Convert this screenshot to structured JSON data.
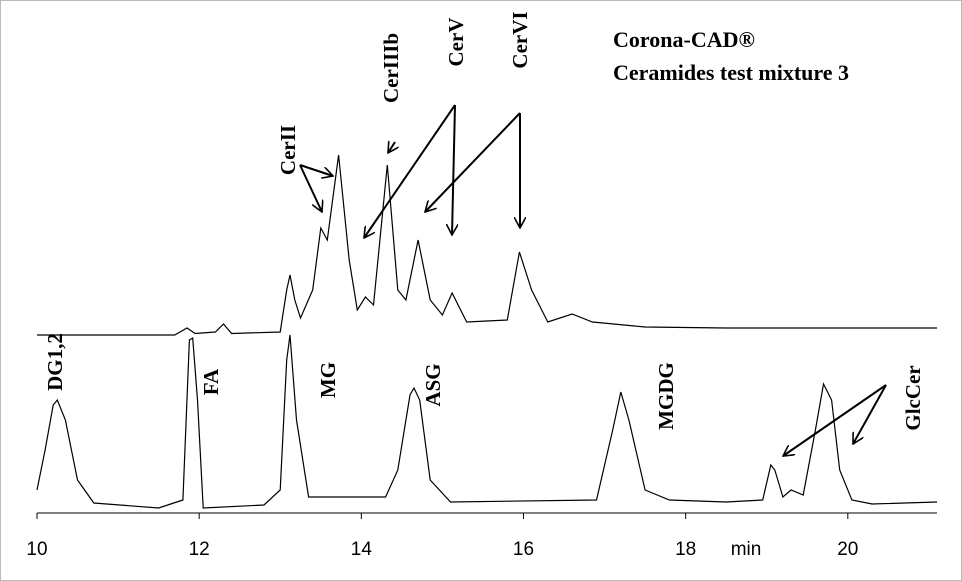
{
  "chart_data": {
    "type": "line",
    "title_lines": [
      "Corona-CAD®",
      "Ceramides test mixture 3"
    ],
    "x_unit_label": "min",
    "xlim": [
      10,
      21.1
    ],
    "xticks": [
      10,
      12,
      14,
      16,
      18,
      20
    ],
    "ylim": [
      0,
      100
    ],
    "annotations": [
      "DG1,2",
      "FA",
      "MG",
      "ASG",
      "MGDG",
      "GlcCer",
      "CerII",
      "CerIIIb",
      "CerV",
      "CerVI"
    ],
    "series": [
      {
        "color": "#000000",
        "x": [
          10.0,
          11.7,
          11.85,
          11.95,
          12.2,
          12.3,
          12.4,
          13.0,
          13.08,
          13.12,
          13.18,
          13.25,
          13.4,
          13.5,
          13.58,
          13.72,
          13.85,
          13.95,
          14.05,
          14.15,
          14.32,
          14.45,
          14.55,
          14.7,
          14.85,
          15.0,
          15.12,
          15.3,
          15.8,
          15.95,
          16.1,
          16.3,
          16.6,
          16.85,
          17.5,
          18.5,
          21.1
        ],
        "values": [
          35.6,
          35.6,
          37,
          35.9,
          36.2,
          37.8,
          35.9,
          36.2,
          44.6,
          47.6,
          42.6,
          39,
          44.6,
          57,
          54.6,
          71.6,
          50.6,
          40.6,
          43.2,
          41.6,
          69.6,
          44.6,
          42.6,
          54.6,
          42.6,
          39.6,
          44,
          38.2,
          38.6,
          52.2,
          44.6,
          38.2,
          39.8,
          38.2,
          37.2,
          37,
          37
        ]
      },
      {
        "color": "#000000",
        "x": [
          10.0,
          10.1,
          10.2,
          10.25,
          10.35,
          10.5,
          10.7,
          11.5,
          11.8,
          11.88,
          11.92,
          11.98,
          12.05,
          12.8,
          13.0,
          13.08,
          13.12,
          13.2,
          13.35,
          14.3,
          14.45,
          14.6,
          14.65,
          14.72,
          14.85,
          15.1,
          16.9,
          17.1,
          17.2,
          17.3,
          17.5,
          17.8,
          18.5,
          18.95,
          19.05,
          19.1,
          19.2,
          19.3,
          19.45,
          19.6,
          19.7,
          19.8,
          19.9,
          20.05,
          20.3,
          21.1
        ],
        "values": [
          4.6,
          12.6,
          21.6,
          22.6,
          18.6,
          6.6,
          2,
          1,
          2.6,
          34.6,
          35,
          22.6,
          1,
          1.6,
          4.6,
          30.6,
          35.6,
          18.6,
          3.2,
          3.2,
          8.6,
          23.6,
          25,
          22.6,
          6.6,
          2.2,
          2.6,
          16.6,
          24.2,
          18.6,
          4.6,
          2.6,
          2.2,
          2.6,
          9.6,
          8.6,
          3.2,
          4.6,
          3.6,
          16.6,
          25.8,
          22.6,
          8.6,
          2.6,
          1.8,
          2.2
        ]
      }
    ]
  }
}
